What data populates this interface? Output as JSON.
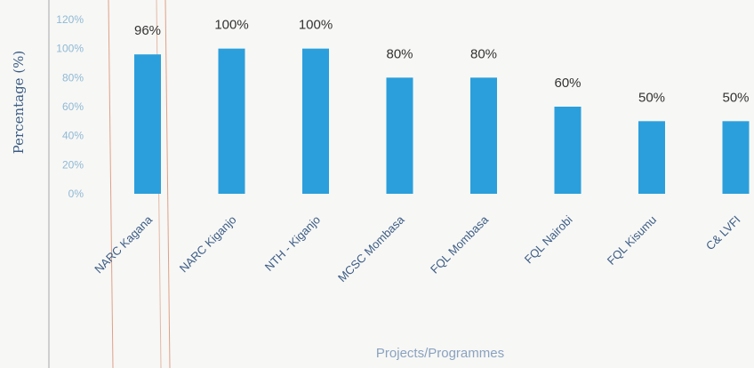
{
  "chart_data": {
    "type": "bar",
    "title": "",
    "xlabel": "Projects/Programmes",
    "ylabel": "Percentage (%)",
    "ylim": [
      0,
      120
    ],
    "yticks": [
      "0%",
      "20%",
      "40%",
      "60%",
      "80%",
      "100%",
      "120%"
    ],
    "categories": [
      "NARC Kagana",
      "NARC Kiganjo",
      "NTH - Kiganjo",
      "MCSC Mombasa",
      "FQL Mombasa",
      "FQL Nairobi",
      "FQL Kisumu",
      "C& LVFI"
    ],
    "values": [
      96,
      100,
      100,
      80,
      80,
      60,
      50,
      50
    ],
    "data_labels": [
      "96%",
      "100%",
      "100%",
      "80%",
      "80%",
      "60%",
      "50%",
      "50%"
    ],
    "bar_color": "#2b9fdc",
    "grid": false,
    "legend": "none"
  }
}
